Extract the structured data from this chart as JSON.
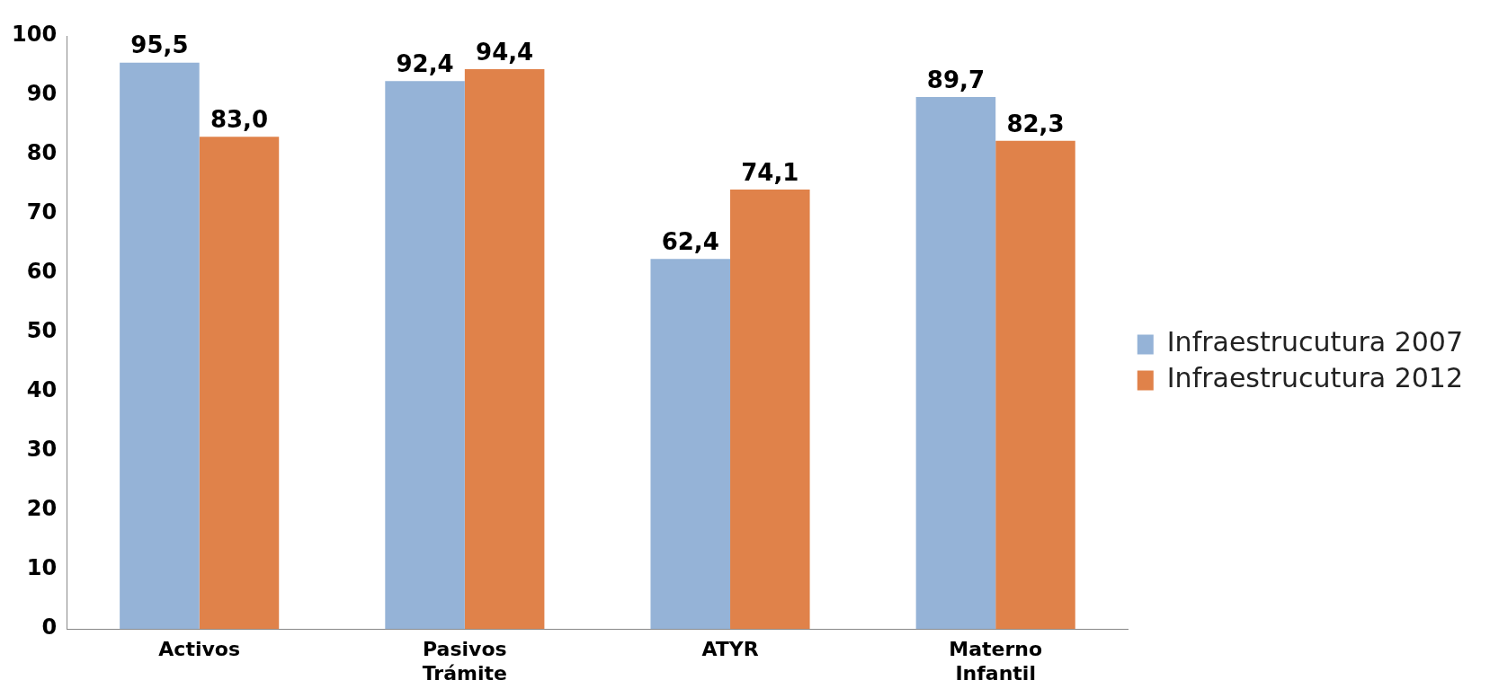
{
  "chart_data": {
    "type": "bar",
    "categories": [
      "Activos",
      "Pasivos Trámite",
      "ATYR",
      "Materno Infantil"
    ],
    "series": [
      {
        "name": "Infraestrucutura 2007",
        "color": "#95b3d7",
        "values": [
          95.5,
          92.4,
          62.4,
          89.7
        ],
        "value_labels": [
          "95,5",
          "92,4",
          "62,4",
          "89,7"
        ]
      },
      {
        "name": "Infraestrucutura 2012",
        "color": "#e0824a",
        "values": [
          83.0,
          94.4,
          74.1,
          82.3
        ],
        "value_labels": [
          "83,0",
          "94,4",
          "74,1",
          "82,3"
        ]
      }
    ],
    "ylim": [
      0,
      100
    ],
    "yticks": [
      0,
      10,
      20,
      30,
      40,
      50,
      60,
      70,
      80,
      90,
      100
    ],
    "grid": false,
    "legend": "right"
  }
}
